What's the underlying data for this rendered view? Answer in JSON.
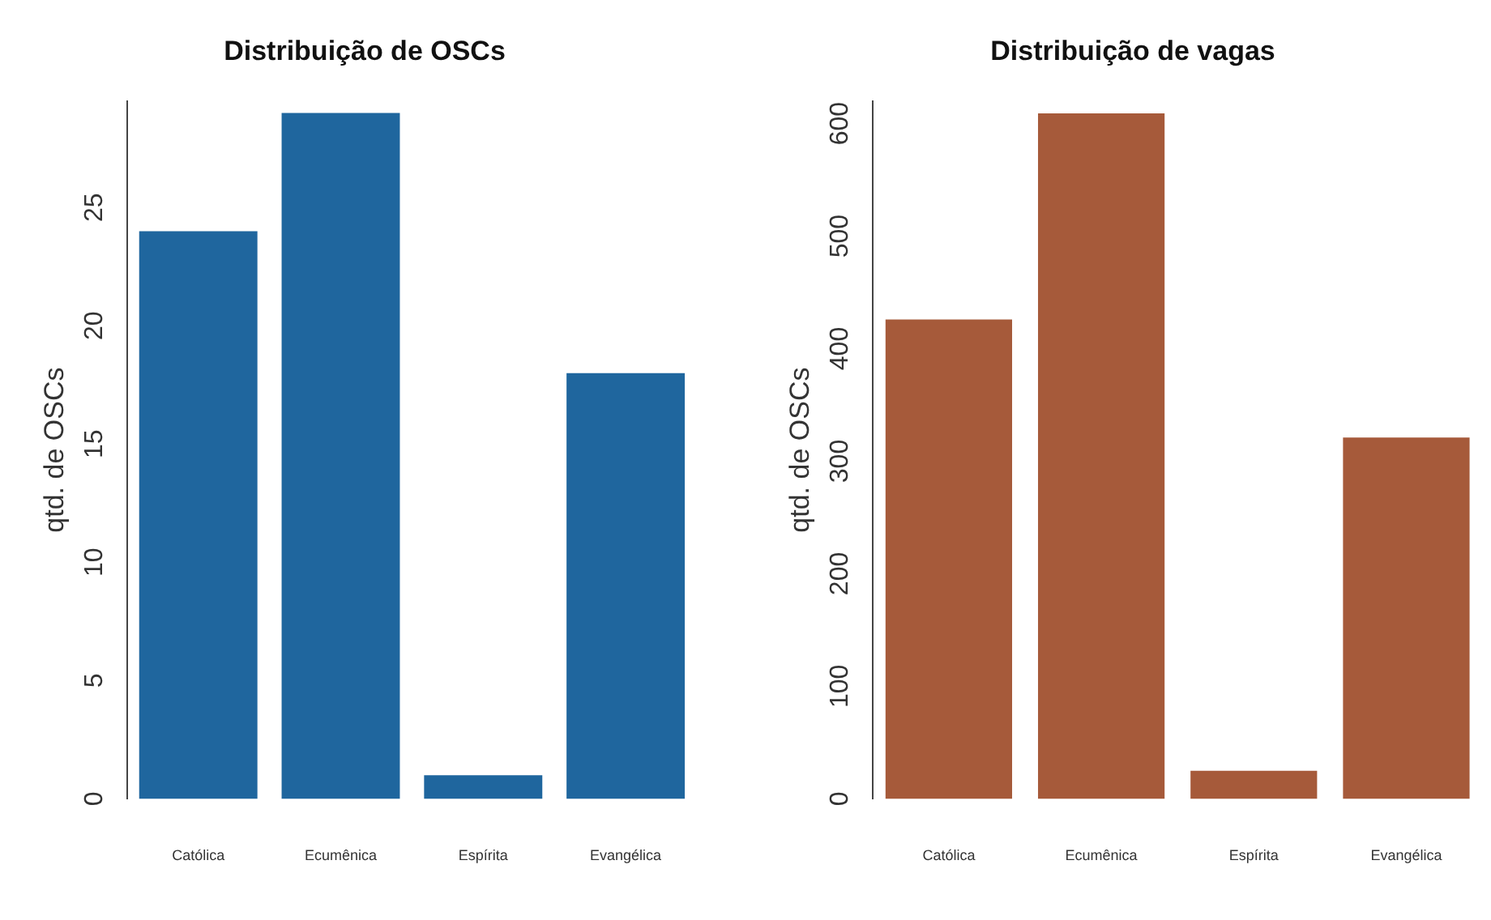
{
  "chart_data": [
    {
      "type": "bar",
      "title": "Distribuição de OSCs",
      "ylabel": "qtd. de OSCs",
      "categories": [
        "Católica",
        "Ecumênica",
        "Espírita",
        "Evangélica"
      ],
      "values": [
        24,
        29,
        1,
        18
      ],
      "color": "#1f669e",
      "ylim": [
        0,
        29.5
      ],
      "yticks": [
        0,
        5,
        10,
        15,
        20,
        25
      ],
      "grid": false,
      "legend": false
    },
    {
      "type": "bar",
      "title": "Distribuição de vagas",
      "ylabel": "qtd. de OSCs",
      "categories": [
        "Católica",
        "Ecumênica",
        "Espírita",
        "Evangélica"
      ],
      "values": [
        426,
        609,
        25,
        321
      ],
      "color": "#a65a3a",
      "ylim": [
        0,
        620
      ],
      "yticks": [
        0,
        100,
        200,
        300,
        400,
        500,
        600
      ],
      "grid": false,
      "legend": false
    }
  ]
}
